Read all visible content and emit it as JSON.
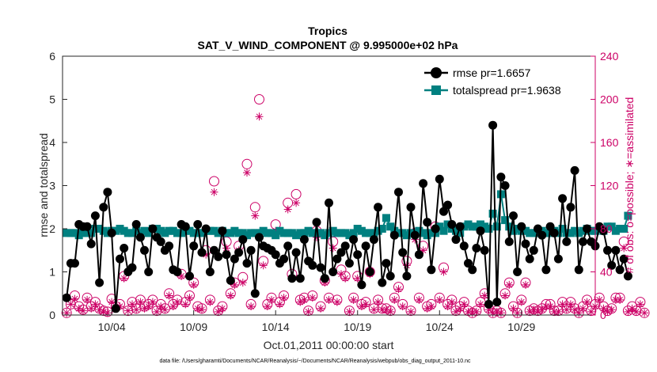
{
  "chart_data": {
    "type": "line",
    "title": "Tropics",
    "subtitle": "SAT_V_WIND_COMPONENT @ 9.995000e+02 hPa",
    "xlabel": "Oct.01,2011 00:00:00 start",
    "ylabel_left": "rmse and totalspread",
    "ylabel_right": "# of obs: o=possible; ∗=assimilated",
    "footnote": "data file: /Users/gharamti/Documents/NCAR/Reanalysis/~/Documents/NCAR/Reanalysis/webpub/obs_diag_output_2011-10.nc",
    "xlim": [
      0,
      32.5
    ],
    "ylim_left": [
      0,
      6
    ],
    "ylim_right": [
      0,
      240
    ],
    "grid": false,
    "legend_position": "top-right",
    "x_ticks": [
      {
        "x": 3,
        "label": "10/04"
      },
      {
        "x": 8,
        "label": "10/09"
      },
      {
        "x": 13,
        "label": "10/14"
      },
      {
        "x": 18,
        "label": "10/19"
      },
      {
        "x": 23,
        "label": "10/24"
      },
      {
        "x": 28,
        "label": "10/29"
      }
    ],
    "y_left_ticks": [
      "0",
      "1",
      "2",
      "3",
      "4",
      "5",
      "6"
    ],
    "y_right_ticks": [
      "0",
      "40",
      "80",
      "120",
      "160",
      "200",
      "240"
    ],
    "colors": {
      "rmse": "#000000",
      "totalspread": "#008080",
      "obs": "#cc0066"
    },
    "series": [
      {
        "name": "rmse pr=1.6657",
        "axis": "left",
        "marker": "filled-circle",
        "values": [
          0.4,
          1.2,
          1.2,
          2.1,
          2.05,
          2.05,
          1.65,
          2.3,
          0.75,
          2.5,
          2.85,
          1.9,
          0.15,
          1.3,
          1.55,
          1.0,
          1.1,
          2.1,
          1.8,
          1.5,
          1.0,
          2.0,
          1.8,
          1.7,
          1.5,
          1.6,
          1.05,
          1.0,
          2.1,
          2.05,
          0.9,
          1.6,
          2.1,
          1.45,
          2.0,
          1.0,
          1.5,
          1.35,
          1.95,
          1.4,
          0.8,
          1.3,
          1.45,
          1.75,
          1.2,
          1.5,
          0.5,
          1.8,
          1.6,
          1.55,
          1.5,
          1.4,
          1.2,
          1.3,
          1.6,
          0.85,
          1.45,
          0.85,
          1.75,
          1.25,
          1.15,
          2.15,
          1.1,
          0.85,
          2.6,
          1.0,
          1.3,
          1.45,
          1.6,
          1.2,
          1.75,
          1.4,
          0.7,
          1.6,
          1.0,
          1.75,
          2.5,
          0.75,
          1.2,
          0.9,
          1.85,
          2.85,
          1.45,
          0.9,
          2.5,
          1.85,
          1.4,
          3.05,
          2.15,
          1.05,
          2.0,
          3.15,
          2.4,
          2.55,
          2.1,
          1.75,
          2.05,
          1.6,
          1.2,
          1.05,
          1.55,
          1.95,
          1.5,
          0.25,
          4.4,
          0.3,
          3.2,
          3.0,
          1.7,
          2.3,
          1.0,
          2.05,
          1.65,
          1.3,
          1.5,
          2.0,
          1.85,
          1.05,
          2.05,
          1.9,
          1.3,
          2.7,
          1.7,
          2.5,
          3.35,
          1.05,
          1.7,
          2.0,
          1.7,
          1.6,
          2.05,
          1.95,
          1.5,
          1.15,
          1.5,
          1.05,
          1.3,
          0.9
        ]
      },
      {
        "name": "totalspread pr=1.9638",
        "axis": "left",
        "marker": "filled-square",
        "values": [
          1.9,
          1.9,
          1.9,
          1.85,
          1.9,
          1.9,
          1.9,
          2.0,
          2.0,
          1.95,
          1.9,
          1.95,
          1.95,
          2.0,
          1.95,
          1.9,
          1.9,
          1.95,
          1.9,
          1.95,
          1.9,
          2.0,
          2.0,
          1.95,
          1.9,
          1.95,
          1.95,
          1.9,
          1.9,
          1.95,
          1.95,
          1.9,
          1.9,
          1.9,
          1.95,
          1.95,
          1.95,
          1.9,
          1.95,
          1.9,
          1.9,
          1.95,
          1.9,
          1.9,
          1.85,
          1.9,
          1.9,
          1.9,
          1.95,
          1.9,
          1.9,
          1.85,
          1.95,
          1.9,
          1.9,
          1.9,
          1.85,
          1.9,
          1.9,
          1.95,
          1.9,
          1.9,
          1.9,
          1.85,
          1.9,
          1.95,
          1.9,
          1.9,
          1.9,
          1.85,
          1.9,
          2.0,
          1.95,
          1.9,
          1.9,
          1.9,
          1.95,
          2.0,
          2.25,
          2.05,
          1.95,
          1.9,
          1.9,
          1.85,
          1.9,
          1.9,
          1.95,
          1.9,
          1.85,
          1.9,
          1.9,
          2.05,
          1.95,
          2.1,
          2.0,
          1.95,
          1.9,
          2.05,
          2.1,
          2.05,
          2.05,
          2.1,
          2.05,
          2.0,
          2.35,
          2.05,
          2.8,
          2.2,
          2.05,
          1.95,
          2.0,
          1.95,
          1.95,
          1.9,
          1.9,
          1.9,
          1.95,
          1.9,
          1.9,
          1.95,
          1.9,
          2.0,
          1.9,
          1.9,
          1.95,
          1.9,
          1.95,
          2.0,
          1.95,
          1.95,
          2.0,
          1.95,
          2.05,
          2.05,
          1.95,
          2.0,
          2.0,
          2.3
        ]
      },
      {
        "name": "possible",
        "axis": "right",
        "marker": "open-circle",
        "values": [
          2,
          10,
          18,
          8,
          5,
          16,
          8,
          12,
          6,
          4,
          3,
          15,
          8,
          10,
          36,
          4,
          12,
          6,
          14,
          8,
          10,
          14,
          4,
          10,
          6,
          20,
          10,
          14,
          38,
          12,
          18,
          30,
          8,
          6,
          60,
          14,
          124,
          4,
          8,
          68,
          20,
          30,
          64,
          35,
          140,
          10,
          100,
          200,
          50,
          10,
          16,
          84,
          12,
          18,
          104,
          38,
          112,
          14,
          16,
          4,
          18,
          78,
          8,
          32,
          16,
          68,
          14,
          42,
          36,
          4,
          16,
          36,
          10,
          12,
          40,
          6,
          14,
          6,
          6,
          4,
          16,
          26,
          10,
          50,
          4,
          76,
          16,
          64,
          8,
          10,
          82,
          16,
          44,
          10,
          14,
          4,
          8,
          12,
          4,
          2,
          4,
          12,
          20,
          6,
          2,
          4,
          2,
          20,
          30,
          8,
          2,
          14,
          30,
          4,
          6,
          4,
          6,
          10,
          10,
          4,
          4,
          12,
          6,
          12,
          6,
          2,
          8,
          14,
          4,
          10,
          16,
          8,
          4,
          6,
          16,
          16,
          68,
          4,
          8,
          4,
          12,
          2
        ]
      },
      {
        "name": "assimilated",
        "axis": "right",
        "marker": "star",
        "values": [
          2,
          10,
          15,
          6,
          4,
          14,
          6,
          10,
          5,
          3,
          2,
          12,
          6,
          8,
          34,
          4,
          10,
          5,
          12,
          6,
          8,
          12,
          3,
          8,
          5,
          18,
          8,
          12,
          36,
          10,
          16,
          28,
          6,
          5,
          56,
          12,
          114,
          3,
          6,
          62,
          18,
          28,
          60,
          30,
          132,
          8,
          92,
          184,
          46,
          8,
          14,
          78,
          10,
          16,
          98,
          34,
          104,
          12,
          14,
          3,
          16,
          72,
          6,
          30,
          14,
          62,
          12,
          38,
          34,
          3,
          14,
          34,
          8,
          10,
          38,
          5,
          12,
          5,
          5,
          3,
          14,
          24,
          8,
          46,
          3,
          70,
          14,
          60,
          6,
          8,
          76,
          14,
          40,
          8,
          12,
          3,
          6,
          10,
          3,
          2,
          3,
          10,
          18,
          5,
          2,
          3,
          2,
          18,
          28,
          6,
          2,
          12,
          28,
          3,
          5,
          3,
          5,
          8,
          8,
          3,
          3,
          10,
          5,
          10,
          5,
          2,
          6,
          12,
          3,
          8,
          14,
          6,
          3,
          5,
          14,
          14,
          62,
          3,
          6,
          3,
          10,
          2
        ]
      }
    ]
  }
}
